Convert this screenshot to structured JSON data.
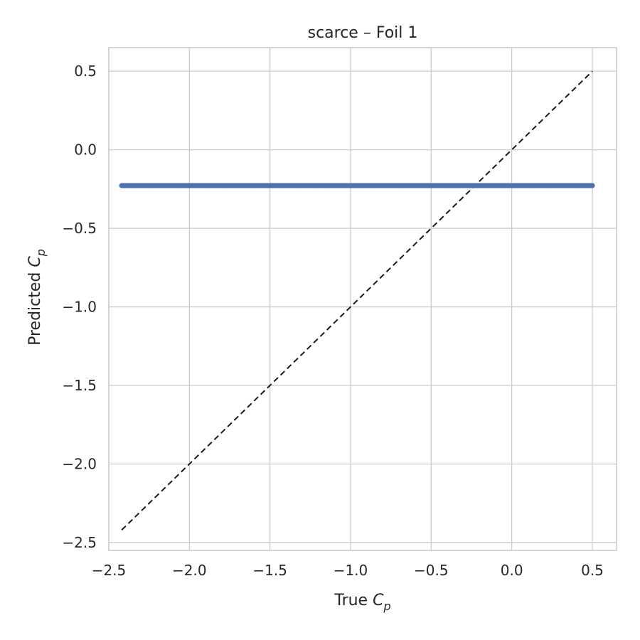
{
  "chart_data": {
    "type": "scatter",
    "title": "scarce – Foil 1",
    "xlabel": {
      "main": "True ",
      "var": "C",
      "sub": "p"
    },
    "ylabel": {
      "main": "Predicted ",
      "var": "C",
      "sub": "p"
    },
    "xlim": [
      -2.5,
      0.65
    ],
    "ylim": [
      -2.55,
      0.65
    ],
    "xticks": [
      -2.5,
      -2.0,
      -1.5,
      -1.0,
      -0.5,
      0.0,
      0.5
    ],
    "yticks": [
      -2.5,
      -2.0,
      -1.5,
      -1.0,
      -0.5,
      0.0,
      0.5
    ],
    "xtick_labels": [
      "−2.5",
      "−2.0",
      "−1.5",
      "−1.0",
      "−0.5",
      "0.0",
      "0.5"
    ],
    "ytick_labels": [
      "−2.5",
      "−2.0",
      "−1.5",
      "−1.0",
      "−0.5",
      "0.0",
      "0.5"
    ],
    "grid": true,
    "series": [
      {
        "x_min": -2.42,
        "x_max": 0.5,
        "count": 300,
        "y": -0.228,
        "color": "#4c72b0"
      }
    ],
    "reference_line": {
      "from": [
        -2.42,
        -2.42
      ],
      "to": [
        0.5,
        0.5
      ],
      "color": "#1a1a1a",
      "style": "dashed"
    }
  }
}
